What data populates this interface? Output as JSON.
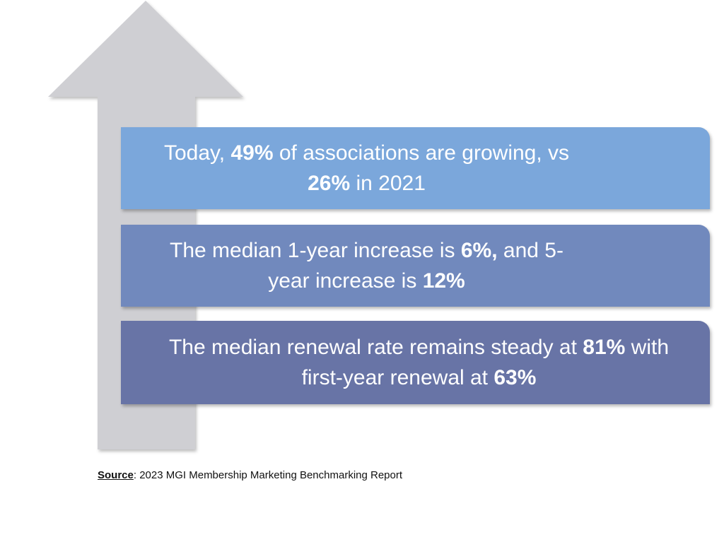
{
  "colors": {
    "arrow": "#cfcfd3",
    "card1": "#7ba7db",
    "card2": "#7189bd",
    "card3": "#6874a6",
    "text": "#ffffff"
  },
  "cards": [
    {
      "parts": [
        {
          "text": "Today, ",
          "bold": false
        },
        {
          "text": "49%",
          "bold": true
        },
        {
          "text": " of associations are growing, vs ",
          "bold": false
        },
        {
          "text": "26%",
          "bold": true
        },
        {
          "text": " in 2021",
          "bold": false
        }
      ]
    },
    {
      "parts": [
        {
          "text": "The median 1-year increase is ",
          "bold": false
        },
        {
          "text": "6%,",
          "bold": true
        },
        {
          "text": " and 5-year increase is ",
          "bold": false
        },
        {
          "text": "12%",
          "bold": true
        }
      ]
    },
    {
      "parts": [
        {
          "text": "The median renewal rate remains steady at ",
          "bold": false
        },
        {
          "text": "81%",
          "bold": true
        },
        {
          "text": " with first-year renewal at ",
          "bold": false
        },
        {
          "text": "63%",
          "bold": true
        }
      ]
    }
  ],
  "source": {
    "label": "Source",
    "text": ": 2023 MGI Membership Marketing  Benchmarking Report"
  }
}
